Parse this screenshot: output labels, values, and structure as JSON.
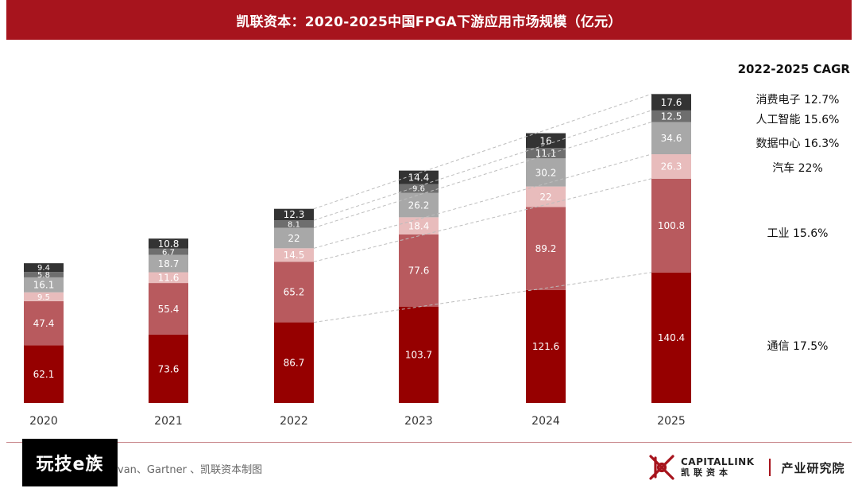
{
  "header": {
    "title": "凯联资本：2020-2025中国FPGA下游应用市场规模（亿元）"
  },
  "chart_data": {
    "type": "bar",
    "stacked": true,
    "categories": [
      "2020",
      "2021",
      "2022",
      "2023",
      "2024",
      "2025"
    ],
    "series": [
      {
        "name": "通信",
        "values": [
          62.1,
          73.6,
          86.7,
          103.7,
          121.6,
          140.4
        ],
        "color": "#960000",
        "cagr": "17.5%"
      },
      {
        "name": "工业",
        "values": [
          47.4,
          55.4,
          65.2,
          77.6,
          89.2,
          100.8
        ],
        "color": "#b85a5e",
        "cagr": "15.6%"
      },
      {
        "name": "汽车",
        "values": [
          9.5,
          11.6,
          14.5,
          18.4,
          22,
          26.3
        ],
        "color": "#e8bcbc",
        "cagr": "22%"
      },
      {
        "name": "数据中心",
        "values": [
          16.1,
          18.7,
          22,
          26.2,
          30.2,
          34.6
        ],
        "color": "#a8a8a8",
        "cagr": "16.3%"
      },
      {
        "name": "人工智能",
        "values": [
          5.8,
          6.7,
          8.1,
          9.6,
          11.1,
          12.5
        ],
        "color": "#6e6e6e",
        "cagr": "15.6%"
      },
      {
        "name": "消费电子",
        "values": [
          9.4,
          10.8,
          12.3,
          14.4,
          16,
          17.6
        ],
        "color": "#333333",
        "cagr": "12.7%"
      }
    ],
    "legend_title": "2022-2025 CAGR",
    "legend_placement": "right",
    "connector_lines": "dashed, from 2022 to 2025 segment tops",
    "grid": false,
    "ylim": [
      0,
      332
    ]
  },
  "footer": {
    "watermark": "玩技e族",
    "source": "van、Gartner 、凯联资本制图",
    "logo_en": "CAPITALLINK",
    "logo_cn": "凯联资本",
    "institute": "产业研究院"
  }
}
